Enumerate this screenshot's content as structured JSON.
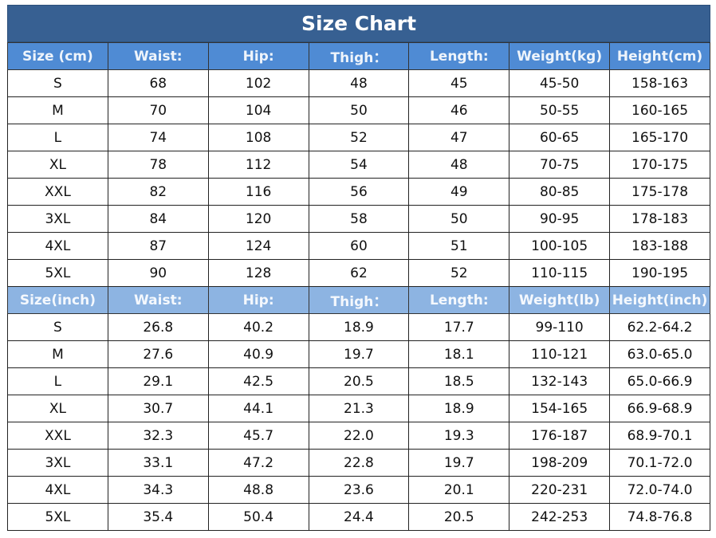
{
  "title": "Size Chart",
  "colors": {
    "title_bg": "#376092",
    "cm_header_bg": "#4f8bd4",
    "inch_header_bg": "#8db4e2"
  },
  "cm_table": {
    "headers": [
      "Size (cm)",
      "Waist:",
      "Hip:",
      "Thigh：",
      "Length:",
      "Weight(kg)",
      "Height(cm)"
    ],
    "rows": [
      [
        "S",
        "68",
        "102",
        "48",
        "45",
        "45-50",
        "158-163"
      ],
      [
        "M",
        "70",
        "104",
        "50",
        "46",
        "50-55",
        "160-165"
      ],
      [
        "L",
        "74",
        "108",
        "52",
        "47",
        "60-65",
        "165-170"
      ],
      [
        "XL",
        "78",
        "112",
        "54",
        "48",
        "70-75",
        "170-175"
      ],
      [
        "XXL",
        "82",
        "116",
        "56",
        "49",
        "80-85",
        "175-178"
      ],
      [
        "3XL",
        "84",
        "120",
        "58",
        "50",
        "90-95",
        "178-183"
      ],
      [
        "4XL",
        "87",
        "124",
        "60",
        "51",
        "100-105",
        "183-188"
      ],
      [
        "5XL",
        "90",
        "128",
        "62",
        "52",
        "110-115",
        "190-195"
      ]
    ]
  },
  "inch_table": {
    "headers": [
      "Size(inch)",
      "Waist:",
      "Hip:",
      "Thigh：",
      "Length:",
      "Weight(lb)",
      "Height(inch)"
    ],
    "rows": [
      [
        "S",
        "26.8",
        "40.2",
        "18.9",
        "17.7",
        "99-110",
        "62.2-64.2"
      ],
      [
        "M",
        "27.6",
        "40.9",
        "19.7",
        "18.1",
        "110-121",
        "63.0-65.0"
      ],
      [
        "L",
        "29.1",
        "42.5",
        "20.5",
        "18.5",
        "132-143",
        "65.0-66.9"
      ],
      [
        "XL",
        "30.7",
        "44.1",
        "21.3",
        "18.9",
        "154-165",
        "66.9-68.9"
      ],
      [
        "XXL",
        "32.3",
        "45.7",
        "22.0",
        "19.3",
        "176-187",
        "68.9-70.1"
      ],
      [
        "3XL",
        "33.1",
        "47.2",
        "22.8",
        "19.7",
        "198-209",
        "70.1-72.0"
      ],
      [
        "4XL",
        "34.3",
        "48.8",
        "23.6",
        "20.1",
        "220-231",
        "72.0-74.0"
      ],
      [
        "5XL",
        "35.4",
        "50.4",
        "24.4",
        "20.5",
        "242-253",
        "74.8-76.8"
      ]
    ]
  }
}
